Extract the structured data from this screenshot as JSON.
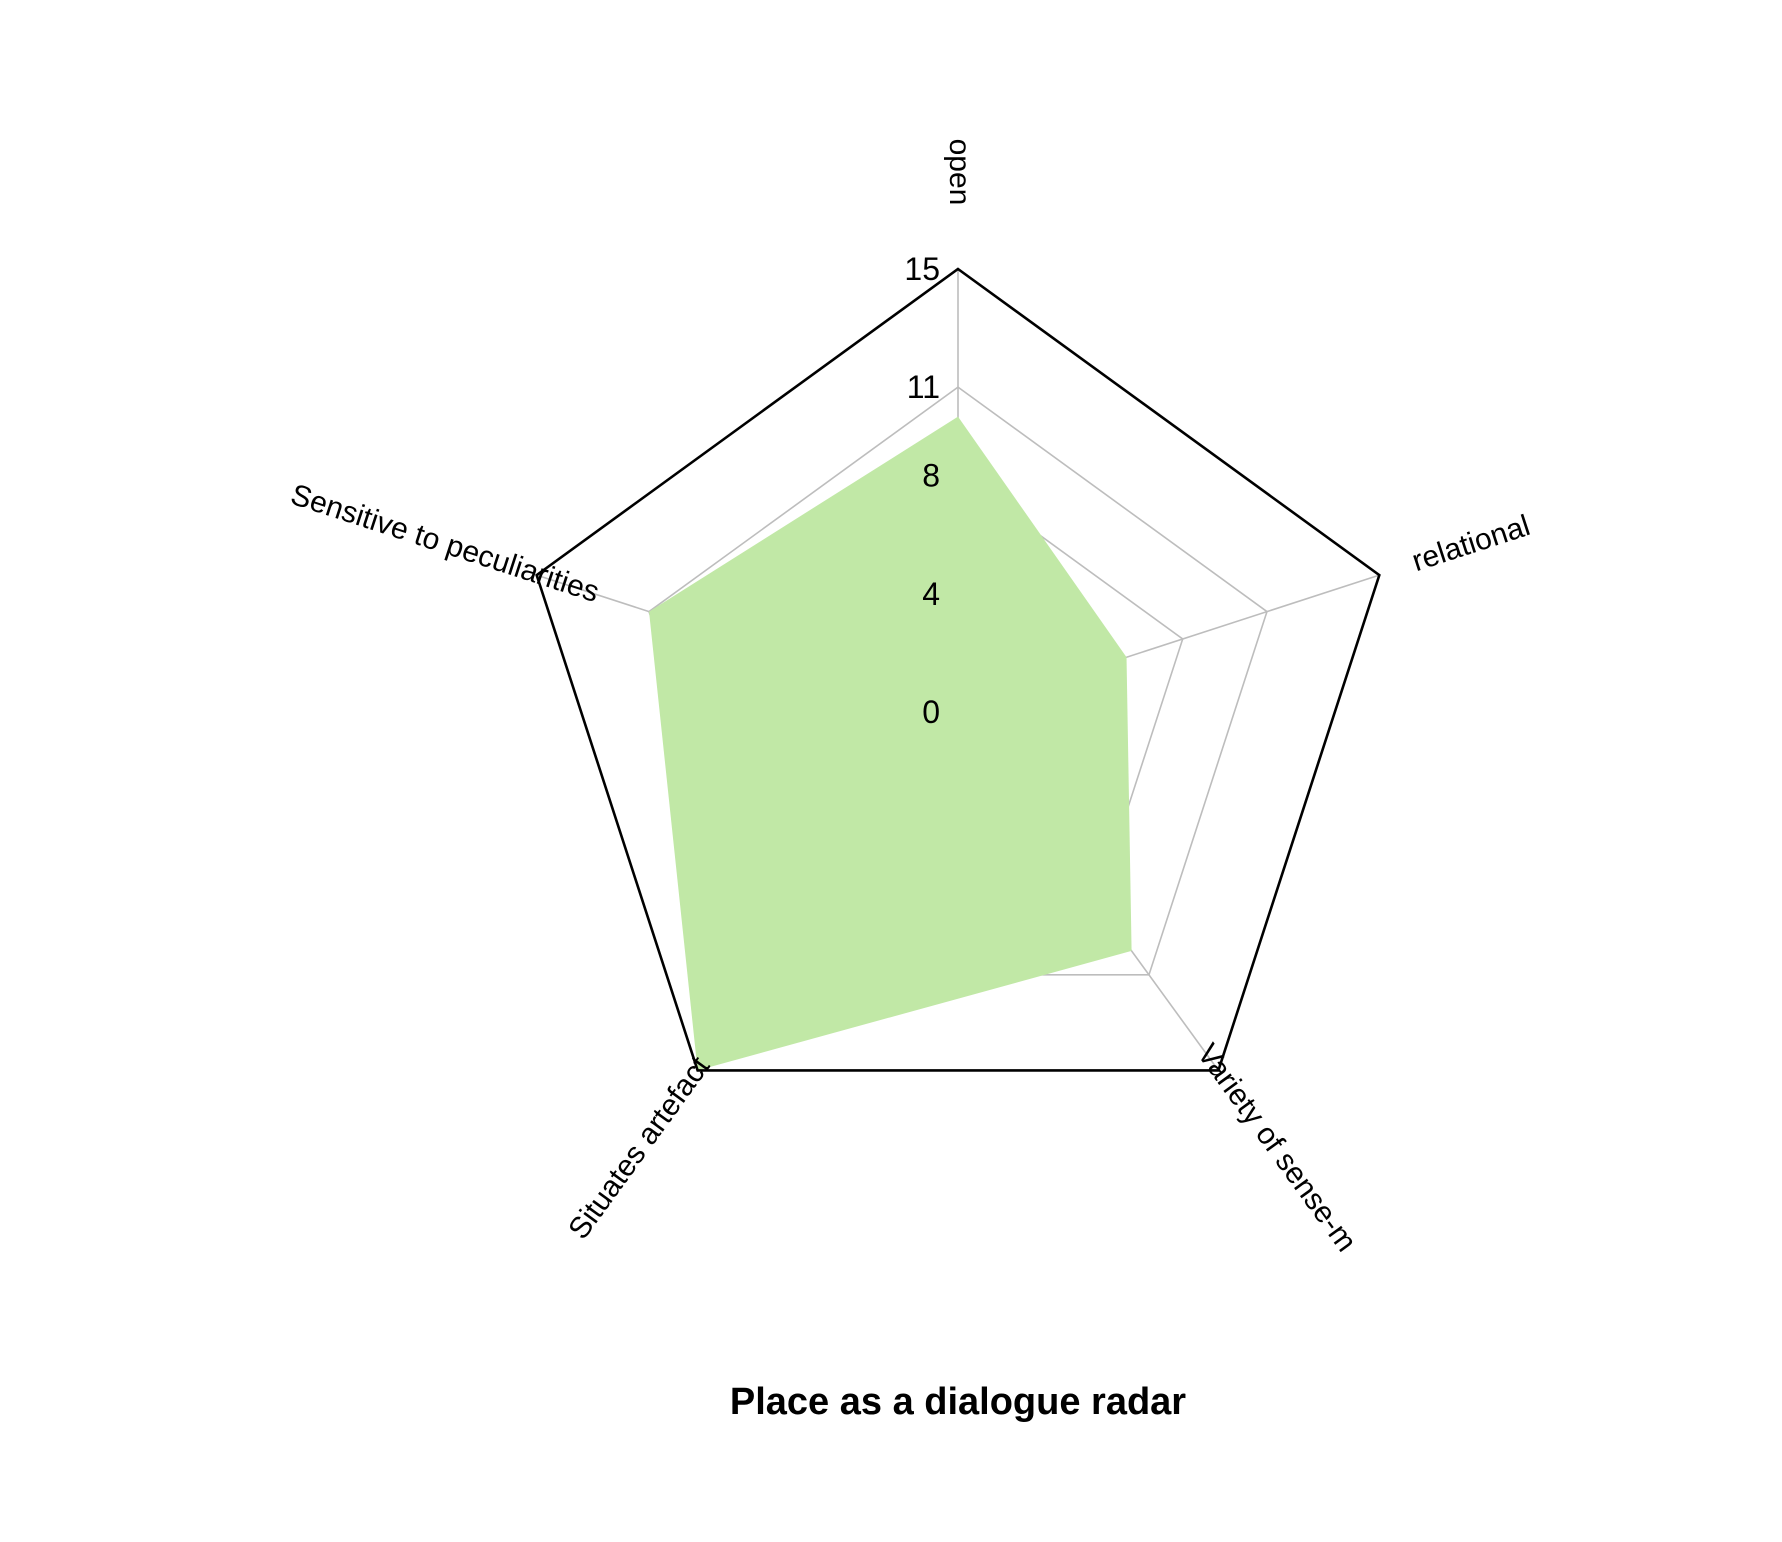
{
  "chart_data": {
    "type": "radar",
    "title": "Place as a dialogue radar",
    "axes": [
      "open",
      "relational",
      "Variety of sense-m",
      "Situates artefact",
      "Sensitive to peculiarities"
    ],
    "series": [
      {
        "values": [
          10,
          6,
          10,
          15,
          11
        ],
        "color": "#c1e8a6"
      }
    ],
    "rlim": [
      0,
      15
    ],
    "ticks": [
      0,
      4,
      8,
      11,
      15
    ],
    "grid": true,
    "colors": {
      "fill": "#c1e8a6",
      "grid": "#bdbdbd",
      "outer": "#000000"
    }
  }
}
